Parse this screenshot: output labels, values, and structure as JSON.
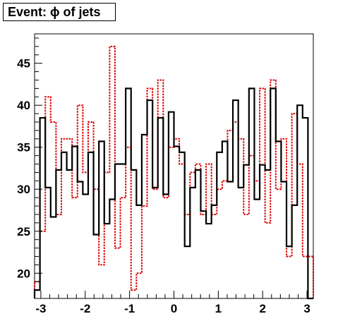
{
  "title": "Event: ϕ of jets",
  "chart_data": {
    "type": "histogram",
    "title": "Event: ϕ of jets",
    "xlim": [
      -3.14159,
      3.14159
    ],
    "ylim": [
      17.0,
      48.5
    ],
    "xticks": [
      -3,
      -2,
      -1,
      0,
      1,
      2,
      3
    ],
    "xtick_labels": [
      "-3",
      "-2",
      "-1",
      "0",
      "1",
      "2",
      "3"
    ],
    "yticks": [
      20,
      25,
      30,
      35,
      40,
      45
    ],
    "ytick_labels": [
      "20",
      "25",
      "30",
      "35",
      "40",
      "45"
    ],
    "grid": false,
    "legend": "none",
    "series": [
      {
        "style": "solid",
        "color": "#000000",
        "values": [
          18.0,
          38.5,
          30.2,
          26.7,
          32.3,
          34.4,
          32.3,
          35.1,
          30.9,
          29.4,
          34.4,
          24.6,
          35.7,
          25.9,
          28.8,
          33.0,
          33.0,
          42.0,
          32.3,
          28.1,
          36.5,
          40.6,
          30.2,
          38.5,
          29.4,
          39.2,
          35.1,
          34.4,
          23.2,
          30.2,
          32.3,
          27.4,
          25.9,
          28.1,
          34.4,
          35.7,
          30.9,
          40.6,
          30.2,
          32.9,
          42.0,
          28.8,
          32.9,
          32.3,
          42.0,
          35.7,
          30.9,
          23.2,
          28.1,
          40.0,
          38.5,
          17.0
        ]
      },
      {
        "style": "dotted",
        "color": "#dd0000",
        "values": [
          19.0,
          25.0,
          41.0,
          38.0,
          27.0,
          36.0,
          36.0,
          29.0,
          40.0,
          32.0,
          38.0,
          30.0,
          21.0,
          32.0,
          47.0,
          23.0,
          29.0,
          35.0,
          18.0,
          20.0,
          28.0,
          42.0,
          30.0,
          43.0,
          29.0,
          35.0,
          36.0,
          33.0,
          27.0,
          32.0,
          33.0,
          27.0,
          33.0,
          27.0,
          30.0,
          31.0,
          37.0,
          38.0,
          36.0,
          27.0,
          34.0,
          31.0,
          42.0,
          26.0,
          43.0,
          30.0,
          36.0,
          22.0,
          39.0,
          33.0,
          22.0,
          22.0
        ]
      }
    ]
  }
}
